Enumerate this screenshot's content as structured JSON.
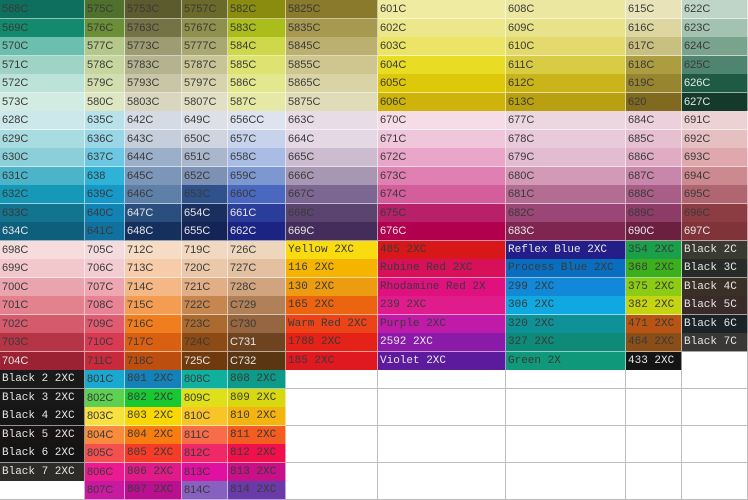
{
  "sections": [
    {
      "rows": [
        [
          [
            "568C",
            "#0f6f5f"
          ],
          [
            "575C",
            "#50712c"
          ],
          [
            "5753C",
            "#5b5b2e"
          ],
          [
            "5757C",
            "#6b6a2a"
          ],
          [
            "582C",
            "#8a8c10"
          ],
          [
            "5825C",
            "#8a7a2c"
          ],
          [
            "601C",
            "#efeba0"
          ],
          [
            "608C",
            "#ebe6a0"
          ],
          [
            "615C",
            "#e8e3b8"
          ],
          [
            "622C",
            "#bfd5c8"
          ]
        ],
        [
          [
            "569C",
            "#138a6e"
          ],
          [
            "576C",
            "#6a8f36"
          ],
          [
            "5763C",
            "#737346"
          ],
          [
            "5767C",
            "#8f8f4e"
          ],
          [
            "583C",
            "#aabd1b"
          ],
          [
            "5835C",
            "#a7994f"
          ],
          [
            "602C",
            "#ede78c"
          ],
          [
            "609C",
            "#e8e28a"
          ],
          [
            "616C",
            "#ddd6a0"
          ],
          [
            "623C",
            "#a4c2b0"
          ]
        ],
        [
          [
            "570C",
            "#6cbeae"
          ],
          [
            "577C",
            "#b3c88a"
          ],
          [
            "5773C",
            "#9d9c73"
          ],
          [
            "5777C",
            "#a9a870"
          ],
          [
            "584C",
            "#cfd84a"
          ],
          [
            "5845C",
            "#bcb070"
          ],
          [
            "603C",
            "#ebe466"
          ],
          [
            "610C",
            "#e3d96c"
          ],
          [
            "617C",
            "#c8c080"
          ],
          [
            "624C",
            "#7aa38e"
          ]
        ],
        [
          [
            "571C",
            "#9fd3c6"
          ],
          [
            "578C",
            "#c7d69f"
          ],
          [
            "5783C",
            "#b4b38f"
          ],
          [
            "5787C",
            "#c8c496"
          ],
          [
            "585C",
            "#dde271"
          ],
          [
            "5855C",
            "#cfc68f"
          ],
          [
            "604C",
            "#e8dc24"
          ],
          [
            "611C",
            "#d8cc44"
          ],
          [
            "618C",
            "#ac9d40"
          ],
          [
            "625C",
            "#4e8470"
          ]
        ],
        [
          [
            "572C",
            "#bde3d8"
          ],
          [
            "579C",
            "#d2deaf"
          ],
          [
            "5793C",
            "#c8c6a7"
          ],
          [
            "5797C",
            "#d6d3ae"
          ],
          [
            "586C",
            "#e3e78e"
          ],
          [
            "5865C",
            "#d9d3a6"
          ],
          [
            "605C",
            "#ddc80a"
          ],
          [
            "612C",
            "#c9b41a"
          ],
          [
            "619C",
            "#978530"
          ],
          [
            "626C",
            "#1f5a44"
          ]
        ],
        [
          [
            "573C",
            "#d2ebe3"
          ],
          [
            "580C",
            "#dee6c3"
          ],
          [
            "5803C",
            "#d8d6bf"
          ],
          [
            "5807C",
            "#e1dfc5"
          ],
          [
            "587C",
            "#e6e9a6"
          ],
          [
            "5875C",
            "#e0dcb8"
          ],
          [
            "606C",
            "#cdb30a"
          ],
          [
            "613C",
            "#b9a010"
          ],
          [
            "620",
            "#7f6a20"
          ],
          [
            "627C",
            "#143a2c"
          ]
        ]
      ]
    },
    {
      "rows": [
        [
          [
            "628C",
            "#cde8ea"
          ],
          [
            "635C",
            "#b8e2ea"
          ],
          [
            "642C",
            "#d5dbe4"
          ],
          [
            "649C",
            "#dde0e6"
          ],
          [
            "656CC",
            "#dde3ef"
          ],
          [
            "663C",
            "#e8dde6"
          ],
          [
            "670C",
            "#f5dce6"
          ],
          [
            "677C",
            "#ecd6e0"
          ],
          [
            "684C",
            "#ecd0dc"
          ],
          [
            "691C",
            "#ecd2d2"
          ]
        ],
        [
          [
            "629C",
            "#a8dce0"
          ],
          [
            "636C",
            "#9ad7e6"
          ],
          [
            "643C",
            "#c5cfdc"
          ],
          [
            "650C",
            "#cfd5e0"
          ],
          [
            "657C",
            "#c7d3eb"
          ],
          [
            "664C",
            "#e3d8e3"
          ],
          [
            "671C",
            "#f0c6da"
          ],
          [
            "678C",
            "#e8cada"
          ],
          [
            "685C",
            "#e6c0d0"
          ],
          [
            "692C",
            "#e6c0c0"
          ]
        ],
        [
          [
            "630C",
            "#8ccfd8"
          ],
          [
            "637C",
            "#6cc8e2"
          ],
          [
            "644C",
            "#9bb0c8"
          ],
          [
            "651C",
            "#a9b6cc"
          ],
          [
            "658C",
            "#a9bde4"
          ],
          [
            "665C",
            "#cdbcd0"
          ],
          [
            "672C",
            "#e9a6c8"
          ],
          [
            "679C",
            "#e2bdd2"
          ],
          [
            "686C",
            "#dfacc4"
          ],
          [
            "693C",
            "#dea8ac"
          ]
        ],
        [
          [
            "631C",
            "#4bb4c8"
          ],
          [
            "638",
            "#2eb2d8"
          ],
          [
            "645C",
            "#7b96b8"
          ],
          [
            "652C",
            "#7c91b4"
          ],
          [
            "659C",
            "#7d97d0"
          ],
          [
            "666C",
            "#a897b2"
          ],
          [
            "673C",
            "#e080b2"
          ],
          [
            "680C",
            "#d39ab8"
          ],
          [
            "687C",
            "#c886aa"
          ],
          [
            "694C",
            "#cc8a90"
          ]
        ],
        [
          [
            "632C",
            "#1599b6"
          ],
          [
            "639C",
            "#1698c8"
          ],
          [
            "646C",
            "#5e7fa8"
          ],
          [
            "653C",
            "#2f528c"
          ],
          [
            "660C",
            "#4a68c0"
          ],
          [
            "667C",
            "#7c6792"
          ],
          [
            "674C",
            "#d45e9c"
          ],
          [
            "681C",
            "#b36c92"
          ],
          [
            "688C",
            "#a85e86"
          ],
          [
            "695C",
            "#b06670"
          ]
        ],
        [
          [
            "633C",
            "#12748f"
          ],
          [
            "640C",
            "#1182b4"
          ],
          [
            "647C",
            "#2a4f7e"
          ],
          [
            "654C",
            "#1a2f5e"
          ],
          [
            "661C",
            "#2a3d9a"
          ],
          [
            "668C",
            "#5c4470"
          ],
          [
            "675C",
            "#b8206a"
          ],
          [
            "682C",
            "#9a4676"
          ],
          [
            "689C",
            "#8c3c66"
          ],
          [
            "696C",
            "#8e3c44"
          ]
        ],
        [
          [
            "634C",
            "#0e5f7c"
          ],
          [
            "641C",
            "#10709e"
          ],
          [
            "648C",
            "#16305e"
          ],
          [
            "655C",
            "#142456"
          ],
          [
            "662C",
            "#1b2482"
          ],
          [
            "669C",
            "#442d5a"
          ],
          [
            "676C",
            "#b0004e"
          ],
          [
            "683C",
            "#7e2650"
          ],
          [
            "690C",
            "#6c2040"
          ],
          [
            "697C",
            "#80343a"
          ]
        ]
      ]
    },
    {
      "rows": [
        [
          [
            "698C",
            "#f6dcdc"
          ],
          [
            "705C",
            "#f4dcde"
          ],
          [
            "712C",
            "#f6dcc4"
          ],
          [
            "719C",
            "#f2d8c0"
          ],
          [
            "726C",
            "#eed6bc"
          ],
          [
            "Yellow 2XC",
            "#f8dc10"
          ],
          [
            "485 2XC",
            "#d81818"
          ],
          [
            "Reflex Blue 2XC",
            "#241e88"
          ],
          [
            "354 2XC",
            "#1aa04a"
          ],
          [
            "Black 2C",
            "#3a3a30"
          ]
        ],
        [
          [
            "699C",
            "#f2c8cc"
          ],
          [
            "706C",
            "#f2ccd0"
          ],
          [
            "713C",
            "#f6ccaa"
          ],
          [
            "720C",
            "#ecc8aa"
          ],
          [
            "727C",
            "#e2c0a0"
          ],
          [
            "116 2XC",
            "#f4b400"
          ],
          [
            "Rubine Red 2XC",
            "#d8105a"
          ],
          [
            "Process Blue 2XC",
            "#0a6ec0"
          ],
          [
            "368 2XC",
            "#3cb01c"
          ],
          [
            "Black 3C",
            "#282c28"
          ]
        ],
        [
          [
            "700C",
            "#eaa4ae"
          ],
          [
            "707C",
            "#eea6b0"
          ],
          [
            "714C",
            "#f4b886"
          ],
          [
            "721C",
            "#e2ae86"
          ],
          [
            "728C",
            "#d0a47e"
          ],
          [
            "130 2XC",
            "#ec9c10"
          ],
          [
            "Rhodamine Red 2X",
            "#e0107e"
          ],
          [
            "299 2XC",
            "#1288d8"
          ],
          [
            "375 2XC",
            "#8ccc14"
          ],
          [
            "Black 4C",
            "#3a3028"
          ]
        ],
        [
          [
            "701C",
            "#e4818e"
          ],
          [
            "708C",
            "#e88294"
          ],
          [
            "715C",
            "#f49c52"
          ],
          [
            "722C",
            "#c68650"
          ],
          [
            "C729",
            "#b08058"
          ],
          [
            "165 2XC",
            "#ec6410"
          ],
          [
            "239 2XC",
            "#e01c8c"
          ],
          [
            "306 2XC",
            "#10a8e0"
          ],
          [
            "382 2XC",
            "#c4d410"
          ],
          [
            "Black 5C",
            "#3a2a2a"
          ]
        ],
        [
          [
            "702C",
            "#d45a6c"
          ],
          [
            "709C",
            "#e05a70"
          ],
          [
            "716C",
            "#f07e1e"
          ],
          [
            "723C",
            "#aa6a30"
          ],
          [
            "C730",
            "#966640"
          ],
          [
            "Warm Red 2XC",
            "#ec4418"
          ],
          [
            "Purple 2XC",
            "#c01aa8"
          ],
          [
            "320 2XC",
            "#0e9298"
          ],
          [
            "471 2XC",
            "#b85414"
          ],
          [
            "Black 6C",
            "#1a2428"
          ]
        ],
        [
          [
            "703C",
            "#b53446"
          ],
          [
            "710C",
            "#d83a52"
          ],
          [
            "717C",
            "#d86010"
          ],
          [
            "724C",
            "#8c4a14"
          ],
          [
            "C731",
            "#6e4420"
          ],
          [
            "1788 2XC",
            "#e42218"
          ],
          [
            "2592 2XC",
            "#8a1aa8"
          ],
          [
            "327 2XC",
            "#0e8a78"
          ],
          [
            "464 2XC",
            "#8a4e18"
          ],
          [
            "Black 7C",
            "#3a3836"
          ]
        ],
        [
          [
            "704C",
            "#9a2232"
          ],
          [
            "711C",
            "#c82a3c"
          ],
          [
            "718C",
            "#bc4e10"
          ],
          [
            "725C",
            "#6e3a0e"
          ],
          [
            "C732",
            "#5a3612"
          ],
          [
            "185 2XC",
            "#e01820"
          ],
          [
            "Violet 2XC",
            "#5c1a9c"
          ],
          [
            "Green 2X",
            "#10987a"
          ],
          [
            "433 2XC",
            "#141414"
          ],
          [
            "",
            ""
          ]
        ]
      ]
    },
    {
      "rows": [
        [
          [
            "Black 2 2XC",
            "#1a1a1a"
          ],
          [
            "801C",
            "#1aa8d0"
          ],
          [
            "801 2XC",
            "#1482b8"
          ],
          [
            "808C",
            "#10b0a0"
          ],
          [
            "808 2XC",
            "#0e9a88"
          ],
          [
            "",
            ""
          ],
          [
            "",
            ""
          ],
          [
            "",
            ""
          ],
          [
            "",
            ""
          ],
          [
            "",
            ""
          ]
        ],
        [
          [
            "Black 3 2XC",
            "#181818"
          ],
          [
            "802C",
            "#5cd050"
          ],
          [
            "802 2XC",
            "#18c830"
          ],
          [
            "809C",
            "#e0e018"
          ],
          [
            "809 2XC",
            "#d8d810"
          ],
          [
            "",
            ""
          ],
          [
            "",
            ""
          ],
          [
            "",
            ""
          ],
          [
            "",
            ""
          ],
          [
            "",
            ""
          ]
        ],
        [
          [
            "Black 4 2XC",
            "#161616"
          ],
          [
            "803C",
            "#f8e040"
          ],
          [
            "803 2XC",
            "#f8d800"
          ],
          [
            "810C",
            "#f8c428"
          ],
          [
            "810 2XC",
            "#f4b410"
          ],
          [
            "",
            ""
          ],
          [
            "",
            ""
          ],
          [
            "",
            ""
          ],
          [
            "",
            ""
          ],
          [
            "",
            ""
          ]
        ],
        [
          [
            "Black 5 2XC",
            "#181414"
          ],
          [
            "804C",
            "#f88c3c"
          ],
          [
            "804 2XC",
            "#f87c10"
          ],
          [
            "811C",
            "#f86c48"
          ],
          [
            "811 2XC",
            "#f45c20"
          ],
          [
            "",
            ""
          ],
          [
            "",
            ""
          ],
          [
            "",
            ""
          ],
          [
            "",
            ""
          ],
          [
            "",
            ""
          ]
        ],
        [
          [
            "Black 6 2XC",
            "#141414"
          ],
          [
            "805C",
            "#f45050"
          ],
          [
            "805 2XC",
            "#f43c28"
          ],
          [
            "812C",
            "#f02868"
          ],
          [
            "812 2XC",
            "#f0104c"
          ],
          [
            "",
            ""
          ],
          [
            "",
            ""
          ],
          [
            "",
            ""
          ],
          [
            "",
            ""
          ],
          [
            "",
            ""
          ]
        ],
        [
          [
            "Black 7 2XC",
            "#2e2c28"
          ],
          [
            "806C",
            "#ec1a90"
          ],
          [
            "806 2XC",
            "#e01a88"
          ],
          [
            "813C",
            "#e010a0"
          ],
          [
            "813 2XC",
            "#c81088"
          ],
          [
            "",
            ""
          ],
          [
            "",
            ""
          ],
          [
            "",
            ""
          ],
          [
            "",
            ""
          ],
          [
            "",
            ""
          ]
        ],
        [
          [
            "",
            ""
          ],
          [
            "807C",
            "#c81aa0"
          ],
          [
            "807 2XC",
            "#b8108e"
          ],
          [
            "814C",
            "#8860c0"
          ],
          [
            "814 2XC",
            "#6a3aa8"
          ],
          [
            "",
            ""
          ],
          [
            "",
            ""
          ],
          [
            "",
            ""
          ],
          [
            "",
            ""
          ],
          [
            "",
            ""
          ]
        ]
      ]
    }
  ]
}
